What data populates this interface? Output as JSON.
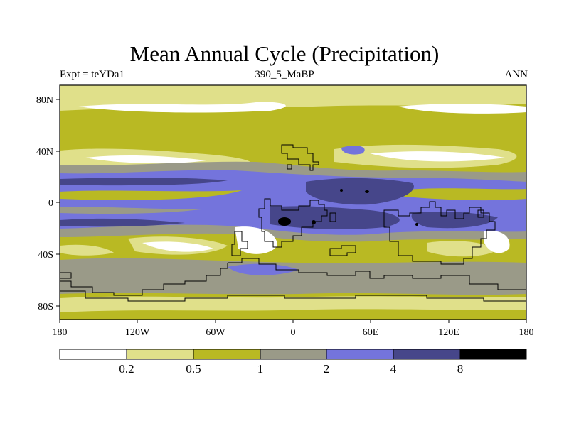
{
  "title": "Mean Annual Cycle (Precipitation)",
  "subtitle_left": "Expt = teYDa1",
  "subtitle_center": "390_5_MaBP",
  "subtitle_right": "ANN",
  "chart_data": {
    "type": "heatmap",
    "title": "Mean Annual Cycle (Precipitation)",
    "x_axis": {
      "range": [
        -180,
        180
      ],
      "ticks": [
        "180",
        "120W",
        "60W",
        "0",
        "60E",
        "120E",
        "180"
      ]
    },
    "y_axis": {
      "range": [
        -90,
        90
      ],
      "ticks": [
        "80N",
        "40N",
        "0",
        "40S",
        "80S"
      ]
    },
    "colorbar": {
      "levels": [
        "0.2",
        "0.5",
        "1",
        "2",
        "4",
        "8"
      ],
      "colors": [
        "#ffffff",
        "#e0e08a",
        "#b9b923",
        "#9a9a88",
        "#7474dc",
        "#46468a",
        "#000000"
      ]
    }
  }
}
